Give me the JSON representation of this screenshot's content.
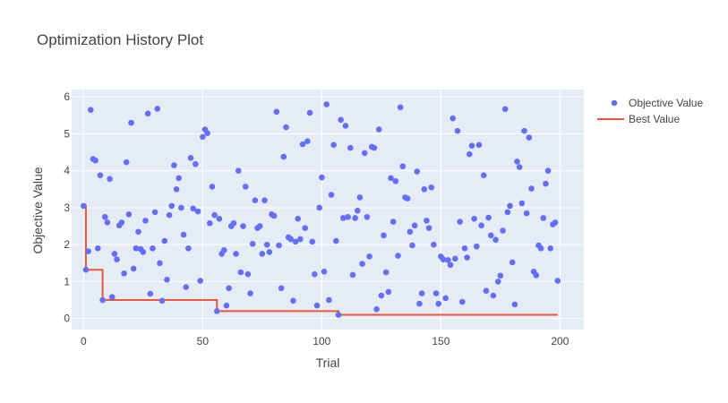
{
  "chart_data": {
    "type": "scatter",
    "title": "Optimization History Plot",
    "xlabel": "Trial",
    "ylabel": "Objective Value",
    "xlim": [
      -5,
      210
    ],
    "ylim": [
      -0.3,
      6.2
    ],
    "xticks": [
      0,
      50,
      100,
      150,
      200
    ],
    "yticks": [
      0,
      1,
      2,
      3,
      4,
      5,
      6
    ],
    "grid": true,
    "legend_position": "top-right",
    "colors": {
      "background": "#e5ecf6",
      "points": "#636efa",
      "best_line": "#ef553b",
      "grid": "#ffffff"
    },
    "series": [
      {
        "name": "Objective Value",
        "mode": "markers",
        "x": [
          0,
          1,
          2,
          3,
          4,
          5,
          6,
          7,
          8,
          9,
          10,
          11,
          12,
          13,
          14,
          15,
          16,
          17,
          18,
          19,
          20,
          21,
          22,
          23,
          24,
          25,
          26,
          27,
          28,
          29,
          30,
          31,
          32,
          33,
          34,
          35,
          36,
          37,
          38,
          39,
          40,
          41,
          42,
          43,
          44,
          45,
          46,
          47,
          48,
          49,
          50,
          51,
          52,
          53,
          54,
          55,
          56,
          57,
          58,
          59,
          60,
          61,
          62,
          63,
          64,
          65,
          66,
          67,
          68,
          69,
          70,
          71,
          72,
          73,
          74,
          75,
          76,
          77,
          78,
          79,
          80,
          81,
          82,
          83,
          84,
          85,
          86,
          87,
          88,
          89,
          90,
          91,
          92,
          93,
          94,
          95,
          96,
          97,
          98,
          99,
          100,
          101,
          102,
          103,
          104,
          105,
          106,
          107,
          108,
          109,
          110,
          111,
          112,
          113,
          114,
          115,
          116,
          117,
          118,
          119,
          120,
          121,
          122,
          123,
          124,
          125,
          126,
          127,
          128,
          129,
          130,
          131,
          132,
          133,
          134,
          135,
          136,
          137,
          138,
          139,
          140,
          141,
          142,
          143,
          144,
          145,
          146,
          147,
          148,
          149,
          150,
          151,
          152,
          153,
          154,
          155,
          156,
          157,
          158,
          159,
          160,
          161,
          162,
          163,
          164,
          165,
          166,
          167,
          168,
          169,
          170,
          171,
          172,
          173,
          174,
          175,
          176,
          177,
          178,
          179,
          180,
          181,
          182,
          183,
          184,
          185,
          186,
          187,
          188,
          189,
          190,
          191,
          192,
          193,
          194,
          195,
          196,
          197,
          198,
          199
        ],
        "y": [
          3.05,
          1.32,
          1.82,
          5.65,
          4.32,
          4.28,
          1.9,
          3.88,
          0.5,
          2.75,
          2.6,
          3.78,
          0.58,
          1.75,
          1.6,
          2.52,
          2.6,
          1.22,
          4.23,
          2.82,
          5.3,
          1.35,
          1.9,
          2.35,
          1.88,
          1.8,
          2.65,
          5.55,
          0.67,
          1.9,
          2.88,
          5.68,
          1.5,
          0.48,
          2.1,
          1.05,
          2.8,
          3.05,
          4.15,
          3.5,
          3.8,
          3.0,
          2.27,
          0.85,
          1.9,
          4.35,
          2.98,
          4.18,
          2.9,
          1.02,
          4.92,
          5.12,
          5.02,
          2.58,
          3.57,
          2.8,
          0.2,
          2.7,
          1.75,
          1.85,
          0.35,
          0.82,
          2.5,
          2.58,
          1.75,
          4.0,
          1.25,
          2.5,
          3.57,
          1.2,
          0.68,
          2.02,
          3.2,
          2.45,
          2.5,
          1.75,
          3.2,
          2.0,
          1.8,
          2.82,
          2.78,
          5.6,
          1.98,
          0.82,
          4.38,
          5.18,
          2.2,
          2.15,
          0.48,
          2.08,
          2.7,
          2.15,
          4.72,
          2.45,
          4.8,
          5.57,
          2.08,
          1.2,
          0.35,
          3.0,
          3.82,
          1.27,
          5.8,
          0.5,
          3.35,
          4.7,
          2.1,
          0.1,
          5.38,
          2.72,
          5.22,
          2.75,
          4.62,
          1.18,
          2.72,
          2.92,
          3.28,
          1.48,
          4.48,
          2.75,
          1.68,
          4.65,
          4.62,
          0.25,
          5.12,
          0.62,
          2.25,
          1.25,
          0.72,
          3.8,
          2.62,
          3.72,
          1.7,
          5.72,
          4.12,
          3.28,
          3.25,
          2.35,
          1.98,
          2.52,
          3.98,
          0.4,
          0.68,
          3.5,
          2.65,
          2.45,
          3.55,
          2.0,
          0.68,
          0.4,
          1.68,
          1.6,
          0.55,
          1.58,
          1.45,
          5.42,
          1.62,
          5.08,
          2.62,
          0.45,
          1.9,
          1.65,
          4.45,
          4.68,
          2.7,
          1.95,
          4.7,
          2.52,
          3.88,
          0.75,
          2.73,
          2.25,
          0.62,
          2.13,
          1.0,
          1.16,
          2.38,
          5.67,
          2.88,
          3.05,
          1.52,
          0.38,
          4.25,
          4.1,
          3.12,
          5.08,
          2.85,
          4.9,
          3.52,
          1.27,
          1.17,
          1.98,
          1.9,
          2.72,
          3.65,
          4.0,
          1.9,
          2.55,
          2.6,
          1.02
        ]
      },
      {
        "name": "Best Value",
        "mode": "lines",
        "x": [
          0,
          1,
          8,
          56,
          107,
          199
        ],
        "y": [
          3.05,
          1.32,
          0.5,
          0.2,
          0.1,
          0.1
        ]
      }
    ]
  }
}
